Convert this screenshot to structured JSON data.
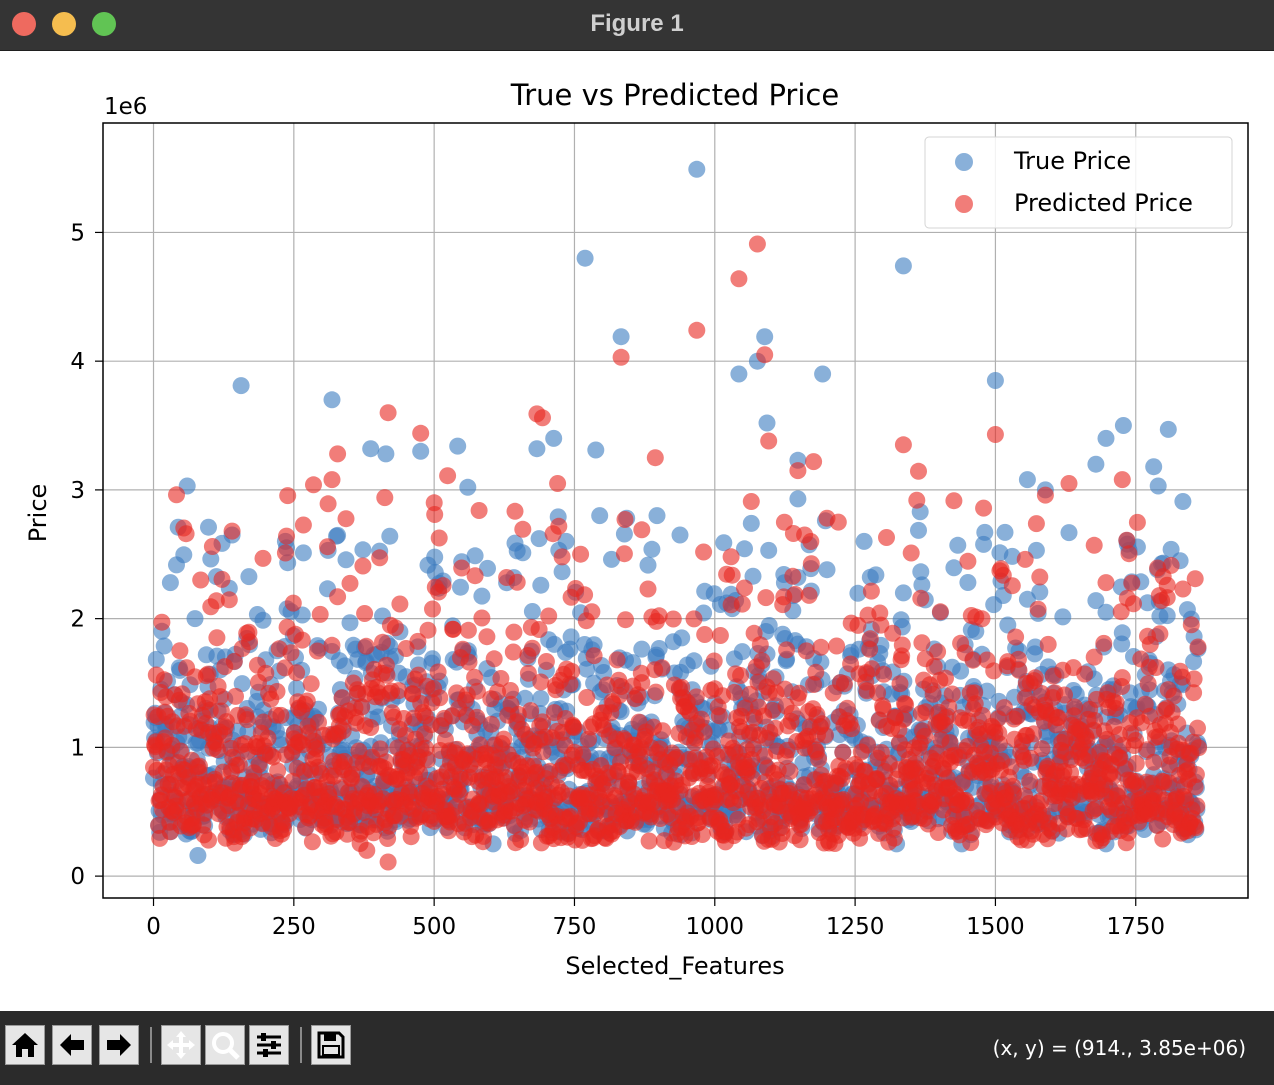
{
  "window": {
    "title": "Figure 1"
  },
  "toolbar": {
    "buttons": [
      {
        "name": "home-button",
        "icon": "home-icon"
      },
      {
        "name": "back-button",
        "icon": "arrow-left-icon"
      },
      {
        "name": "forward-button",
        "icon": "arrow-right-icon"
      },
      {
        "name": "pan-button",
        "icon": "move-icon"
      },
      {
        "name": "zoom-button",
        "icon": "magnifier-icon"
      },
      {
        "name": "configure-subplots-button",
        "icon": "sliders-icon"
      },
      {
        "name": "save-button",
        "icon": "floppy-disk-icon"
      }
    ],
    "coordinates": "(x, y) = (914., 3.85e+06)"
  },
  "chart_data": {
    "type": "scatter",
    "title": "True vs Predicted Price",
    "xlabel": "Selected_Features",
    "ylabel": "Price",
    "y_offset_label": "1e6",
    "xlim": [
      -90,
      1950
    ],
    "ylim": [
      -170000,
      5850000
    ],
    "x_ticks": [
      0,
      250,
      500,
      750,
      1000,
      1250,
      1500,
      1750
    ],
    "x_tick_labels": [
      "0",
      "250",
      "500",
      "750",
      "1000",
      "1250",
      "1500",
      "1750"
    ],
    "y_ticks": [
      0,
      1000000,
      2000000,
      3000000,
      4000000,
      5000000
    ],
    "y_tick_labels": [
      "0",
      "1",
      "2",
      "3",
      "4",
      "5"
    ],
    "grid": true,
    "legend_position": "top-right",
    "n_points_per_series": 1863,
    "series": [
      {
        "name": "True Price",
        "color": "#3a7bbf",
        "alpha": 0.6,
        "highlighted_points": [
          {
            "x": 968,
            "y": 5490000
          },
          {
            "x": 769,
            "y": 4800000
          },
          {
            "x": 1336,
            "y": 4740000
          },
          {
            "x": 833,
            "y": 4190000
          },
          {
            "x": 1089,
            "y": 4190000
          },
          {
            "x": 1043,
            "y": 3900000
          },
          {
            "x": 1076,
            "y": 4000000
          },
          {
            "x": 1192,
            "y": 3900000
          },
          {
            "x": 1500,
            "y": 3850000
          },
          {
            "x": 156,
            "y": 3810000
          },
          {
            "x": 318,
            "y": 3700000
          },
          {
            "x": 1093,
            "y": 3520000
          },
          {
            "x": 1728,
            "y": 3500000
          },
          {
            "x": 1808,
            "y": 3470000
          },
          {
            "x": 1697,
            "y": 3400000
          },
          {
            "x": 713,
            "y": 3400000
          },
          {
            "x": 542,
            "y": 3340000
          },
          {
            "x": 387,
            "y": 3320000
          },
          {
            "x": 683,
            "y": 3320000
          },
          {
            "x": 788,
            "y": 3310000
          },
          {
            "x": 476,
            "y": 3300000
          },
          {
            "x": 414,
            "y": 3280000
          },
          {
            "x": 1148,
            "y": 3230000
          },
          {
            "x": 1679,
            "y": 3200000
          },
          {
            "x": 1782,
            "y": 3180000
          },
          {
            "x": 1557,
            "y": 3080000
          },
          {
            "x": 60,
            "y": 3030000
          },
          {
            "x": 1790,
            "y": 3030000
          },
          {
            "x": 560,
            "y": 3020000
          },
          {
            "x": 1589,
            "y": 3000000
          },
          {
            "x": 1148,
            "y": 2930000
          },
          {
            "x": 1834,
            "y": 2910000
          },
          {
            "x": 1366,
            "y": 2830000
          },
          {
            "x": 795,
            "y": 2800000
          },
          {
            "x": 721,
            "y": 2790000
          },
          {
            "x": 897,
            "y": 2800000
          },
          {
            "x": 843,
            "y": 2780000
          },
          {
            "x": 1197,
            "y": 2760000
          },
          {
            "x": 1065,
            "y": 2740000
          },
          {
            "x": 44,
            "y": 2710000
          },
          {
            "x": 98,
            "y": 2710000
          },
          {
            "x": 1517,
            "y": 2670000
          },
          {
            "x": 1481,
            "y": 2670000
          },
          {
            "x": 140,
            "y": 2650000
          },
          {
            "x": 326,
            "y": 2640000
          },
          {
            "x": 421,
            "y": 2640000
          },
          {
            "x": 938,
            "y": 2650000
          },
          {
            "x": 1016,
            "y": 2590000
          },
          {
            "x": 735,
            "y": 2600000
          },
          {
            "x": 1433,
            "y": 2570000
          },
          {
            "x": 235,
            "y": 2600000
          },
          {
            "x": 1266,
            "y": 2600000
          },
          {
            "x": 1096,
            "y": 2530000
          },
          {
            "x": 1829,
            "y": 2450000
          },
          {
            "x": 816,
            "y": 2460000
          },
          {
            "x": 1148,
            "y": 2320000
          },
          {
            "x": 1068,
            "y": 2330000
          },
          {
            "x": 30,
            "y": 2280000
          },
          {
            "x": 690,
            "y": 2260000
          },
          {
            "x": 1200,
            "y": 2380000
          },
          {
            "x": 595,
            "y": 2390000
          },
          {
            "x": 1287,
            "y": 2340000
          },
          {
            "x": 1336,
            "y": 2200000
          },
          {
            "x": 1557,
            "y": 2150000
          },
          {
            "x": 1679,
            "y": 2140000
          },
          {
            "x": 1697,
            "y": 2050000
          },
          {
            "x": 1842,
            "y": 2070000
          },
          {
            "x": 79,
            "y": 160000
          },
          {
            "x": 1324,
            "y": 250000
          },
          {
            "x": 1440,
            "y": 250000
          },
          {
            "x": 1697,
            "y": 250000
          },
          {
            "x": 605,
            "y": 250000
          }
        ]
      },
      {
        "name": "Predicted Price",
        "color": "#e8261f",
        "alpha": 0.6,
        "highlighted_points": [
          {
            "x": 1076,
            "y": 4910000
          },
          {
            "x": 1043,
            "y": 4640000
          },
          {
            "x": 968,
            "y": 4240000
          },
          {
            "x": 1089,
            "y": 4050000
          },
          {
            "x": 833,
            "y": 4030000
          },
          {
            "x": 418,
            "y": 3600000
          },
          {
            "x": 683,
            "y": 3590000
          },
          {
            "x": 693,
            "y": 3560000
          },
          {
            "x": 476,
            "y": 3440000
          },
          {
            "x": 1500,
            "y": 3430000
          },
          {
            "x": 1096,
            "y": 3380000
          },
          {
            "x": 1336,
            "y": 3350000
          },
          {
            "x": 328,
            "y": 3280000
          },
          {
            "x": 894,
            "y": 3250000
          },
          {
            "x": 1176,
            "y": 3220000
          },
          {
            "x": 1148,
            "y": 3150000
          },
          {
            "x": 524,
            "y": 3110000
          },
          {
            "x": 318,
            "y": 3080000
          },
          {
            "x": 1726,
            "y": 3080000
          },
          {
            "x": 720,
            "y": 3050000
          },
          {
            "x": 285,
            "y": 3040000
          },
          {
            "x": 1589,
            "y": 2960000
          },
          {
            "x": 412,
            "y": 2940000
          },
          {
            "x": 1360,
            "y": 2920000
          },
          {
            "x": 500,
            "y": 2900000
          },
          {
            "x": 1065,
            "y": 2910000
          },
          {
            "x": 580,
            "y": 2840000
          },
          {
            "x": 840,
            "y": 2770000
          },
          {
            "x": 1200,
            "y": 2780000
          },
          {
            "x": 1220,
            "y": 2750000
          },
          {
            "x": 140,
            "y": 2680000
          },
          {
            "x": 870,
            "y": 2690000
          },
          {
            "x": 58,
            "y": 2660000
          },
          {
            "x": 712,
            "y": 2660000
          },
          {
            "x": 1160,
            "y": 2650000
          },
          {
            "x": 1306,
            "y": 2630000
          },
          {
            "x": 1676,
            "y": 2570000
          },
          {
            "x": 105,
            "y": 2560000
          },
          {
            "x": 235,
            "y": 2510000
          },
          {
            "x": 1350,
            "y": 2510000
          },
          {
            "x": 1553,
            "y": 2460000
          },
          {
            "x": 1029,
            "y": 2480000
          },
          {
            "x": 1834,
            "y": 2230000
          },
          {
            "x": 1856,
            "y": 2310000
          },
          {
            "x": 1806,
            "y": 2260000
          },
          {
            "x": 1697,
            "y": 2280000
          },
          {
            "x": 84,
            "y": 2300000
          },
          {
            "x": 418,
            "y": 110000
          },
          {
            "x": 380,
            "y": 200000
          },
          {
            "x": 1593,
            "y": 290000
          },
          {
            "x": 98,
            "y": 280000
          }
        ]
      }
    ]
  }
}
